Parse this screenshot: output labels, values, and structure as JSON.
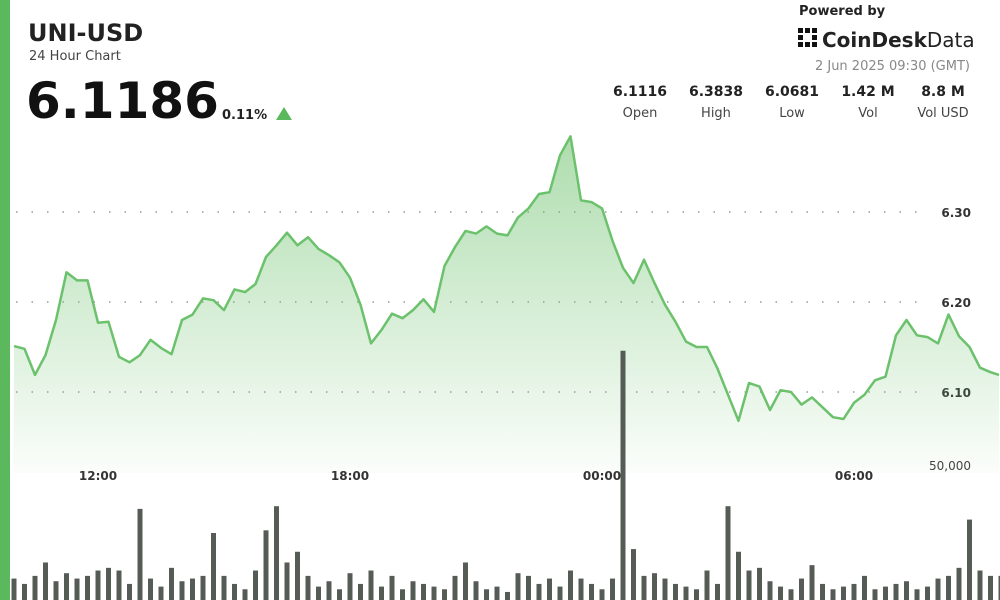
{
  "header": {
    "title": "UNI-USD",
    "subtitle": "24 Hour Chart",
    "price": "6.1186",
    "change": "0.11%"
  },
  "brand": {
    "powered_by": "Powered by",
    "name": "CoinDesk",
    "suffix": "Data"
  },
  "timestamp": "2 Jun 2025 09:30 (GMT)",
  "stats": [
    {
      "value": "6.1116",
      "label": "Open"
    },
    {
      "value": "6.3838",
      "label": "High"
    },
    {
      "value": "6.0681",
      "label": "Low"
    },
    {
      "value": "1.42 M",
      "label": "Vol"
    },
    {
      "value": "8.8 M",
      "label": "Vol USD"
    }
  ],
  "chart_data": [
    {
      "type": "line",
      "color": "#6cc16c",
      "grid": true,
      "categories": [
        null,
        null,
        null,
        null,
        null,
        null,
        null,
        null,
        "12:00",
        null,
        null,
        null,
        null,
        null,
        null,
        null,
        null,
        null,
        null,
        null,
        null,
        null,
        null,
        null,
        null,
        null,
        null,
        null,
        null,
        null,
        null,
        null,
        "18:00",
        null,
        null,
        null,
        null,
        null,
        null,
        null,
        null,
        null,
        null,
        null,
        null,
        null,
        null,
        null,
        null,
        null,
        null,
        null,
        null,
        null,
        null,
        null,
        "00:00",
        null,
        null,
        null,
        null,
        null,
        null,
        null,
        null,
        null,
        null,
        null,
        null,
        null,
        null,
        null,
        null,
        null,
        null,
        null,
        null,
        null,
        null,
        null,
        "06:00",
        null,
        null,
        null,
        null,
        null,
        null,
        null,
        null,
        null,
        null,
        null,
        null,
        null,
        null
      ],
      "series": [
        {
          "values": [
            6.151,
            6.148,
            6.119,
            6.141,
            6.18,
            6.233,
            6.224,
            6.224,
            6.177,
            6.178,
            6.139,
            6.133,
            6.141,
            6.158,
            6.149,
            6.142,
            6.18,
            6.186,
            6.204,
            6.202,
            6.191,
            6.214,
            6.211,
            6.22,
            6.25,
            6.263,
            6.277,
            6.263,
            6.272,
            6.259,
            6.252,
            6.244,
            6.227,
            6.197,
            6.154,
            6.169,
            6.187,
            6.182,
            6.191,
            6.203,
            6.189,
            6.24,
            6.261,
            6.279,
            6.276,
            6.284,
            6.276,
            6.274,
            6.294,
            6.304,
            6.32,
            6.322,
            6.363,
            6.384,
            6.313,
            6.311,
            6.304,
            6.268,
            6.238,
            6.221,
            6.247,
            6.221,
            6.197,
            6.178,
            6.156,
            6.15,
            6.15,
            6.126,
            6.097,
            6.068,
            6.11,
            6.106,
            6.08,
            6.102,
            6.1,
            6.086,
            6.094,
            6.083,
            6.072,
            6.07,
            6.088,
            6.097,
            6.113,
            6.117,
            6.163,
            6.18,
            6.163,
            6.161,
            6.154,
            6.186,
            6.162,
            6.15,
            6.127,
            6.122,
            6.119
          ]
        }
      ],
      "ylim": [
        6.01,
        6.4
      ],
      "yticks": [
        {
          "value": 6.1,
          "label": "6.10"
        },
        {
          "value": 6.2,
          "label": "6.20"
        },
        {
          "value": 6.3,
          "label": "6.30"
        }
      ]
    },
    {
      "type": "bar",
      "color": "#555b55",
      "values": [
        8000,
        6000,
        9000,
        14000,
        7000,
        10000,
        8000,
        9000,
        11000,
        12000,
        11000,
        6000,
        34000,
        8000,
        5000,
        12000,
        7000,
        8000,
        9000,
        25000,
        9000,
        6000,
        4000,
        11000,
        26000,
        35000,
        14000,
        18000,
        9000,
        5000,
        7000,
        4000,
        10000,
        6000,
        11000,
        5000,
        9000,
        4000,
        7000,
        6000,
        5000,
        4000,
        9000,
        14000,
        7000,
        4000,
        5000,
        3000,
        10000,
        9000,
        6000,
        8000,
        5000,
        11000,
        8000,
        6000,
        4000,
        8000,
        93000,
        19000,
        9000,
        10000,
        8000,
        6000,
        5000,
        4000,
        11000,
        6000,
        35000,
        18000,
        11000,
        12000,
        7000,
        5000,
        4000,
        8000,
        13000,
        6000,
        4000,
        5000,
        6000,
        9000,
        4000,
        5000,
        6000,
        7000,
        4000,
        5000,
        8000,
        9000,
        12000,
        30000,
        11000,
        9000,
        9000
      ],
      "ylim": [
        0,
        100000
      ],
      "yticks": [
        {
          "value": 50000,
          "label": "50,000"
        }
      ]
    }
  ]
}
